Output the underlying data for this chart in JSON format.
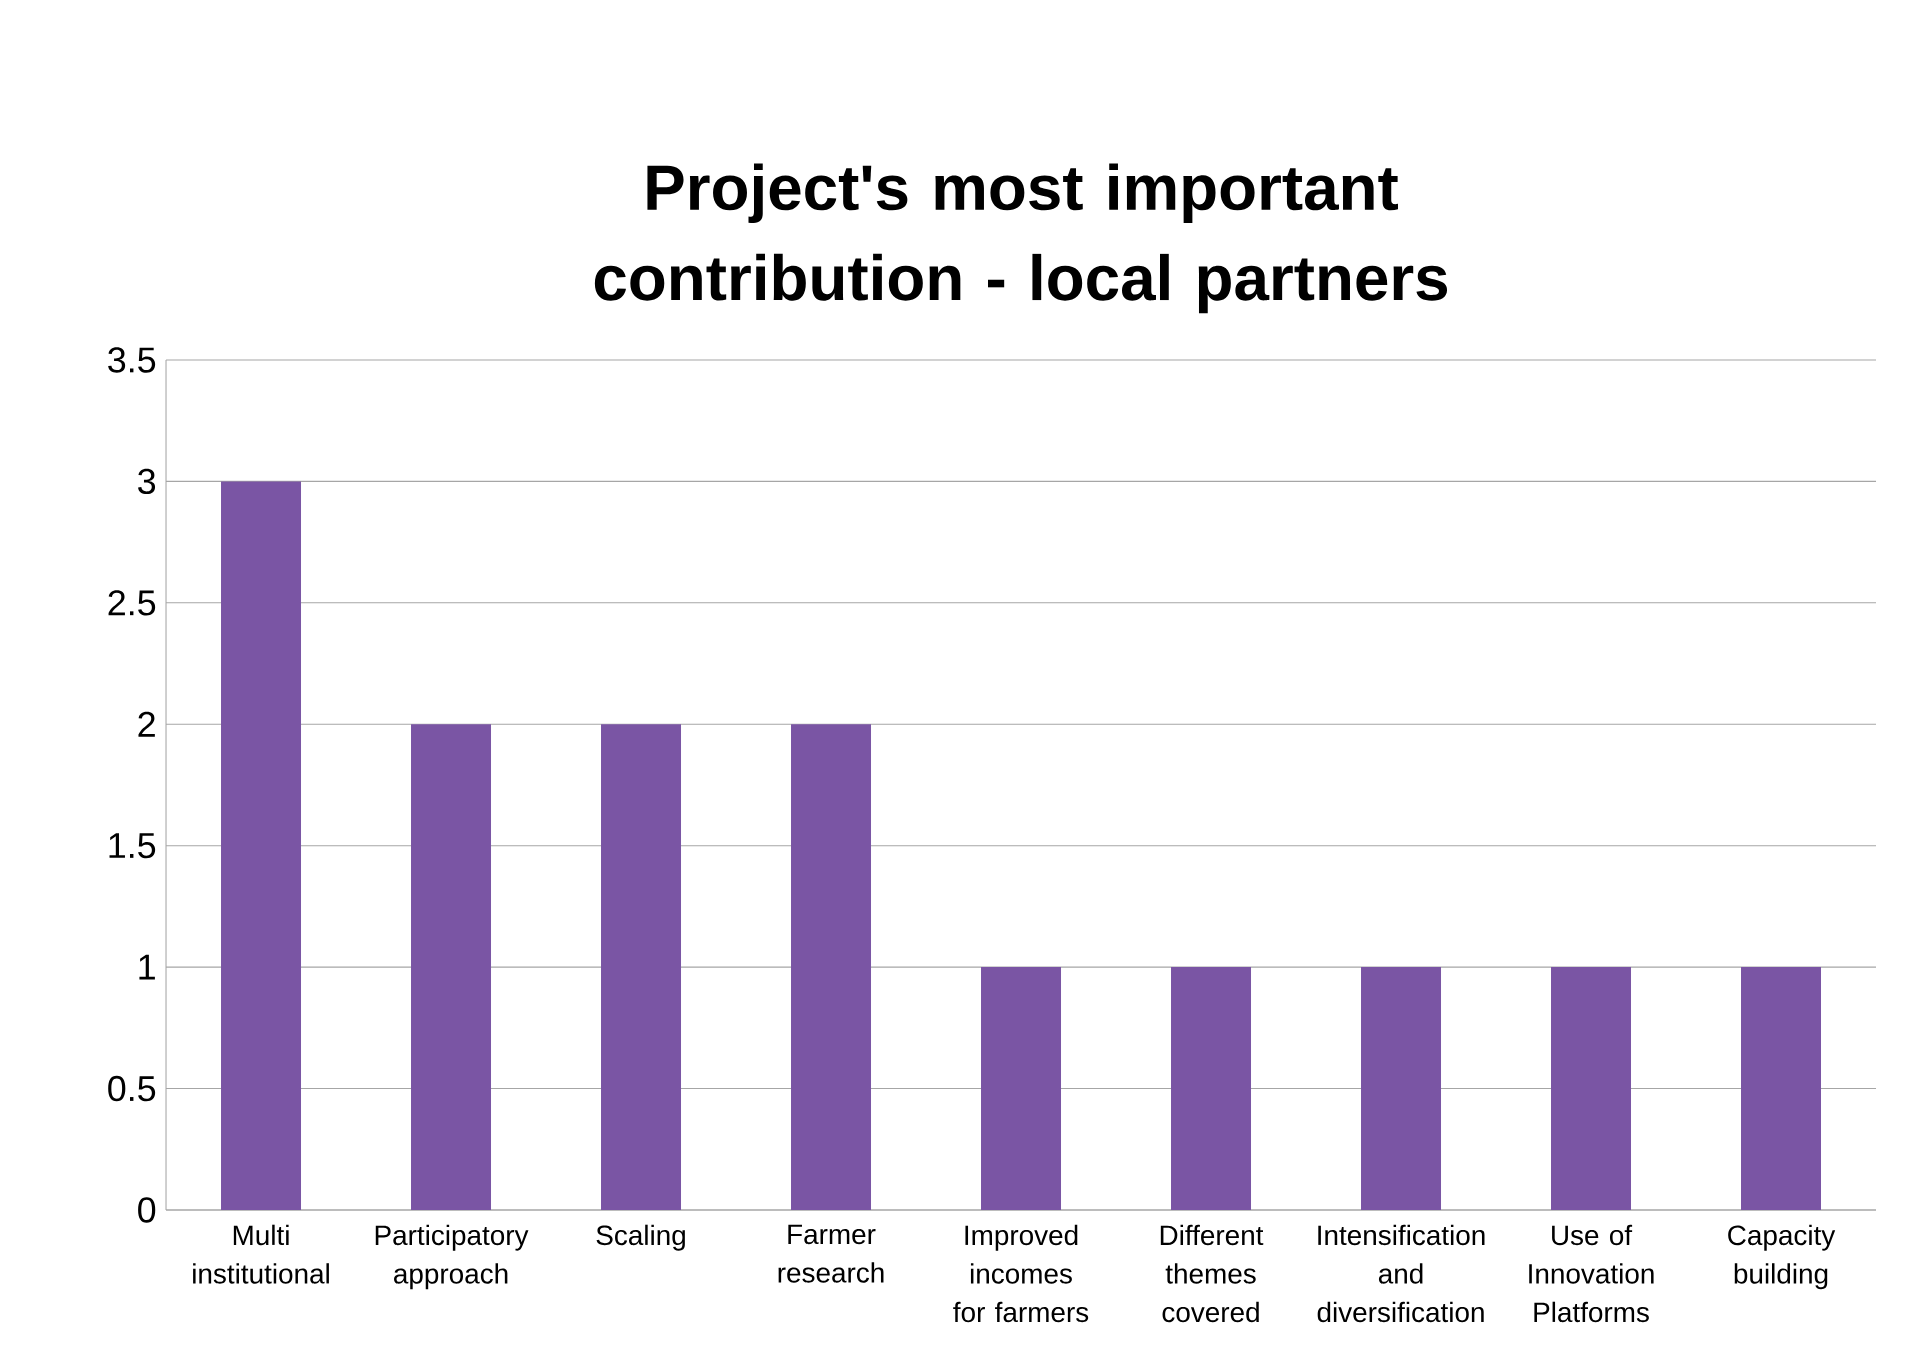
{
  "chart_data": {
    "type": "bar",
    "title": "Project's most important contribution - local partners",
    "categories": [
      "Multi institutional",
      "Participatory approach",
      "Scaling",
      "Farmer research",
      "Improved incomes for farmers",
      "Different themes covered",
      "Intensification and diversification",
      "Use of Innovation Platforms",
      "Capacity building"
    ],
    "values": [
      3,
      2,
      2,
      2,
      1,
      1,
      1,
      1,
      1
    ],
    "color": "#7a55a4",
    "ylim": [
      0,
      3.5
    ],
    "yticks": [
      0,
      0.5,
      1,
      1.5,
      2,
      2.5,
      3,
      3.5
    ],
    "grid": "y"
  }
}
